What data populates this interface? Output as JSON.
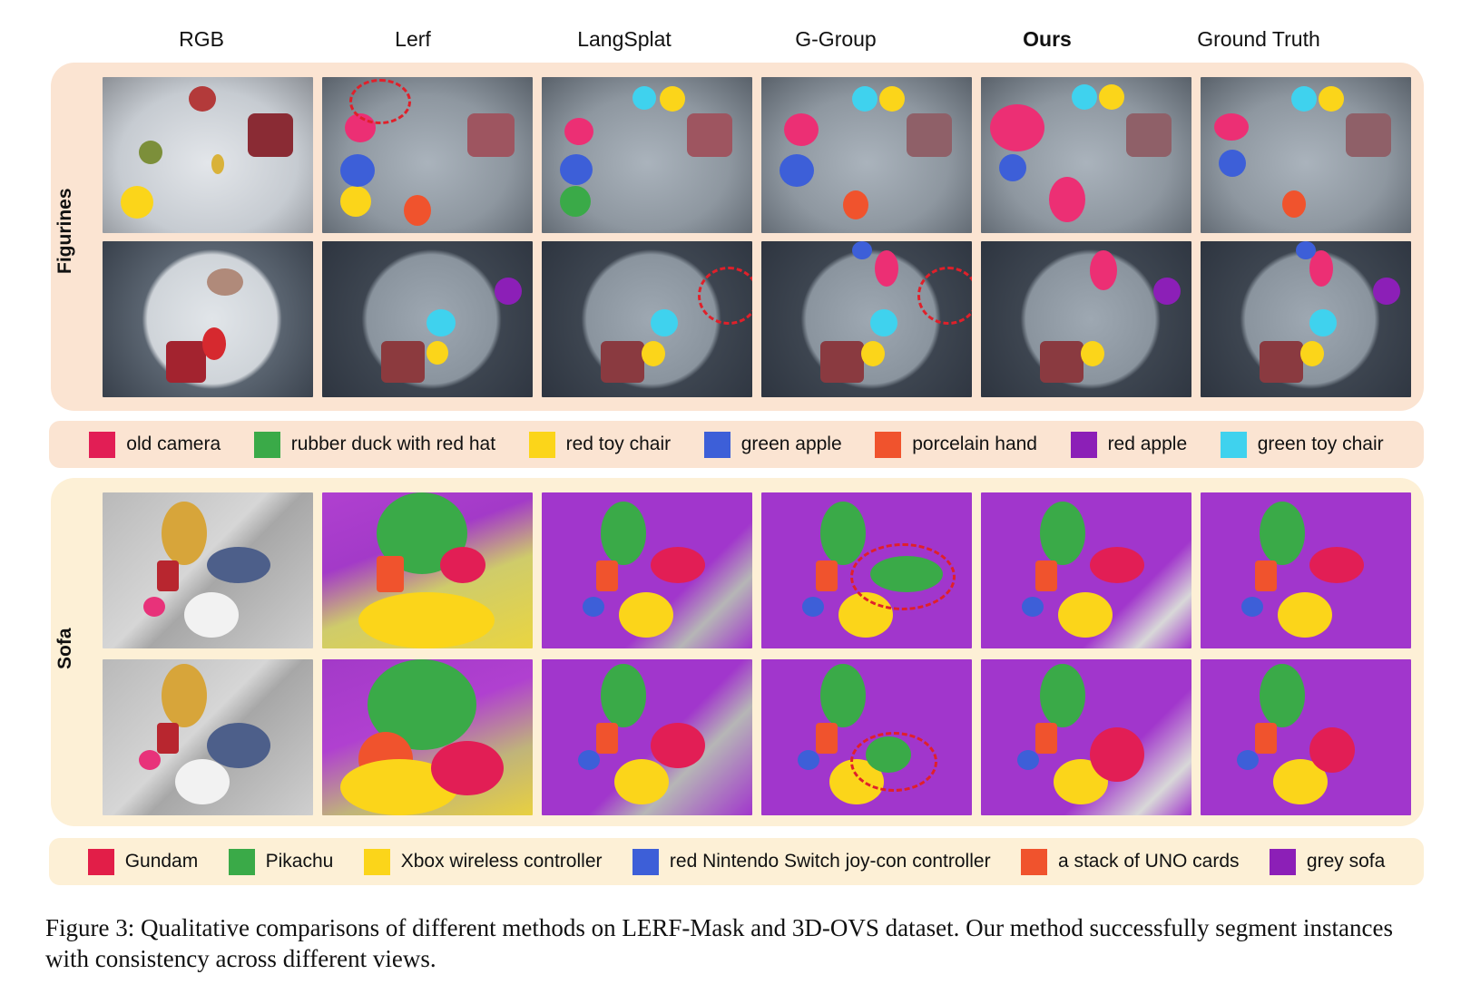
{
  "columns": [
    "RGB",
    "Lerf",
    "LangSplat",
    "G-Group",
    "Ours",
    "Ground Truth"
  ],
  "bold_column": "Ours",
  "sections": [
    {
      "label": "Figurines",
      "legend": [
        {
          "label": "old camera",
          "color": "#e21e55"
        },
        {
          "label": "rubber duck with red hat",
          "color": "#3aaa48"
        },
        {
          "label": "red toy chair",
          "color": "#fbd51a"
        },
        {
          "label": "green apple",
          "color": "#3d5fd8"
        },
        {
          "label": "porcelain hand",
          "color": "#f0532d"
        },
        {
          "label": "red apple",
          "color": "#8c1fb7"
        },
        {
          "label": "green toy chair",
          "color": "#3fd2ee"
        }
      ]
    },
    {
      "label": "Sofa",
      "legend": [
        {
          "label": "Gundam",
          "color": "#e21e48"
        },
        {
          "label": "Pikachu",
          "color": "#3aaa48"
        },
        {
          "label": "Xbox wireless controller",
          "color": "#fbd51a"
        },
        {
          "label": "red Nintendo Switch joy-con controller",
          "color": "#3d5fd8"
        },
        {
          "label": "a stack of UNO cards",
          "color": "#f0532d"
        },
        {
          "label": "grey sofa",
          "color": "#8c1fb7"
        }
      ]
    }
  ],
  "caption": "Figure 3: Qualitative comparisons of different methods on LERF-Mask and 3D-OVS dataset. Our method successfully segment instances with consistency across different views."
}
